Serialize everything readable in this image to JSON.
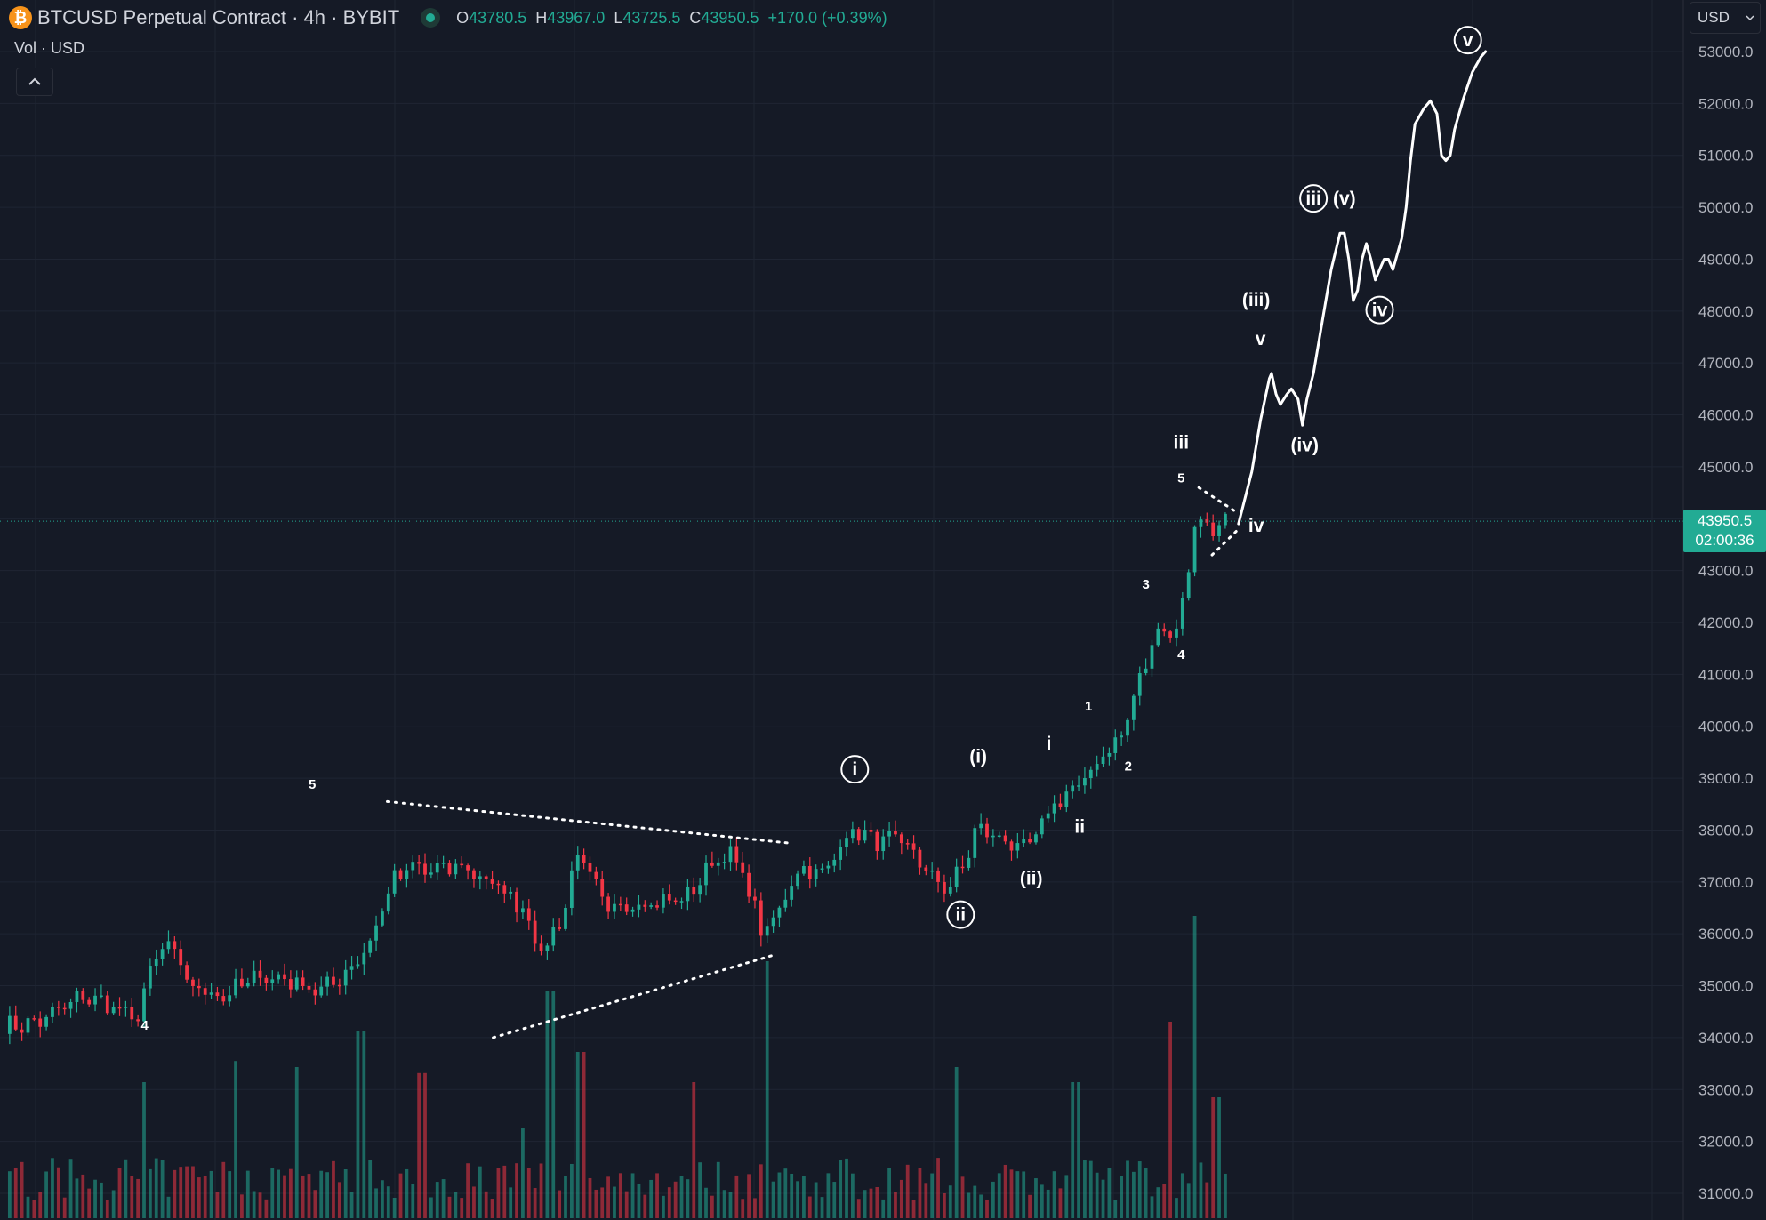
{
  "header": {
    "symbol_title": "BTCUSD Perpetual Contract · 4h · BYBIT",
    "logo_glyph": "₿",
    "ohlc": {
      "o_label": "O",
      "o_value": "43780.5",
      "h_label": "H",
      "h_value": "43967.0",
      "l_label": "L",
      "l_value": "43725.5",
      "c_label": "C",
      "c_value": "43950.5",
      "change": "+170.0 (+0.39%)"
    }
  },
  "volume_legend": "Vol · USD",
  "currency_select": {
    "value": "USD"
  },
  "last_price": {
    "price": "43950.5",
    "countdown": "02:00:36"
  },
  "colors": {
    "bull": "#22ab94",
    "bear": "#f23645",
    "background": "#151a26",
    "annotation": "#ffffff"
  },
  "chart_data": {
    "type": "candlestick",
    "timeframe": "4h",
    "price_axis": {
      "ylim": [
        30700,
        53600
      ],
      "tick_labels": [
        "31000.0",
        "32000.0",
        "33000.0",
        "34000.0",
        "35000.0",
        "36000.0",
        "37000.0",
        "38000.0",
        "39000.0",
        "40000.0",
        "41000.0",
        "42000.0",
        "43000.0",
        "44000.0",
        "45000.0",
        "46000.0",
        "47000.0",
        "48000.0",
        "49000.0",
        "50000.0",
        "51000.0",
        "52000.0",
        "53000.0"
      ],
      "scale": "linear",
      "grid": true
    },
    "bar_count": 200,
    "price_anchors": [
      [
        0,
        34200
      ],
      [
        8,
        34300
      ],
      [
        18,
        34800
      ],
      [
        25,
        34600
      ],
      [
        30,
        34300
      ],
      [
        34,
        35500
      ],
      [
        38,
        35800
      ],
      [
        42,
        35000
      ],
      [
        50,
        34800
      ],
      [
        58,
        35200
      ],
      [
        65,
        35100
      ],
      [
        72,
        34900
      ],
      [
        77,
        35200
      ],
      [
        83,
        35800
      ],
      [
        88,
        37000
      ],
      [
        93,
        37300
      ],
      [
        96,
        37200
      ],
      [
        104,
        37300
      ],
      [
        112,
        36900
      ],
      [
        118,
        36500
      ],
      [
        122,
        35600
      ],
      [
        127,
        36400
      ],
      [
        130,
        37600
      ],
      [
        133,
        37100
      ],
      [
        137,
        36400
      ],
      [
        141,
        36600
      ],
      [
        148,
        36600
      ],
      [
        155,
        36700
      ],
      [
        160,
        37300
      ],
      [
        164,
        37600
      ],
      [
        168,
        37100
      ],
      [
        172,
        36000
      ],
      [
        176,
        36400
      ],
      [
        178,
        37000
      ],
      [
        182,
        37300
      ],
      [
        186,
        37100
      ],
      [
        190,
        37800
      ],
      [
        193,
        38000
      ],
      [
        197,
        37800
      ],
      [
        202,
        37800
      ],
      [
        206,
        37600
      ],
      [
        211,
        37000
      ],
      [
        214,
        36900
      ],
      [
        218,
        37300
      ],
      [
        220,
        38000
      ],
      [
        225,
        37900
      ],
      [
        229,
        37700
      ],
      [
        232,
        37600
      ],
      [
        236,
        38200
      ],
      [
        239,
        38600
      ],
      [
        243,
        38800
      ],
      [
        246,
        39000
      ],
      [
        249,
        39500
      ],
      [
        253,
        39700
      ],
      [
        256,
        40500
      ],
      [
        259,
        41200
      ],
      [
        262,
        42000
      ],
      [
        264,
        41700
      ],
      [
        266,
        42000
      ],
      [
        268,
        42500
      ],
      [
        270,
        44000
      ],
      [
        274,
        43800
      ],
      [
        277,
        43950
      ]
    ],
    "volume": {
      "series": "Vol · USD",
      "spikes": [
        [
          32,
          0.45
        ],
        [
          53,
          0.52
        ],
        [
          67,
          0.5
        ],
        [
          81,
          0.62
        ],
        [
          95,
          0.48
        ],
        [
          118,
          0.3
        ],
        [
          124,
          0.75
        ],
        [
          131,
          0.55
        ],
        [
          156,
          0.45
        ],
        [
          173,
          0.85
        ],
        [
          216,
          0.5
        ],
        [
          243,
          0.45
        ],
        [
          265,
          0.65
        ],
        [
          270,
          1.0
        ],
        [
          275,
          0.4
        ]
      ]
    },
    "patterns": {
      "triangle": {
        "upper": [
          [
            87,
            38550
          ],
          [
            178,
            37750
          ]
        ],
        "lower": [
          [
            111,
            34000
          ],
          [
            175,
            35600
          ]
        ]
      },
      "small_triangle": {
        "upper": [
          [
            271,
            44600
          ],
          [
            280,
            44100
          ]
        ],
        "lower": [
          [
            274,
            43300
          ],
          [
            280,
            43800
          ]
        ]
      }
    },
    "projection_path": [
      [
        280,
        43900
      ],
      [
        283,
        44900
      ],
      [
        285,
        45900
      ],
      [
        287,
        46700
      ],
      [
        287.5,
        46800
      ],
      [
        288.5,
        46400
      ],
      [
        289.5,
        46200
      ],
      [
        291,
        46400
      ],
      [
        292,
        46500
      ],
      [
        293.5,
        46300
      ],
      [
        294.5,
        45800
      ],
      [
        295.5,
        46300
      ],
      [
        297,
        46800
      ],
      [
        299,
        47800
      ],
      [
        301,
        48800
      ],
      [
        303,
        49500
      ],
      [
        304,
        49500
      ],
      [
        305,
        49000
      ],
      [
        306,
        48200
      ],
      [
        307,
        48400
      ],
      [
        308,
        49000
      ],
      [
        309,
        49300
      ],
      [
        310,
        49000
      ],
      [
        311,
        48600
      ],
      [
        312,
        48800
      ],
      [
        313,
        49000
      ],
      [
        314,
        49000
      ],
      [
        315,
        48800
      ],
      [
        316,
        49100
      ],
      [
        317,
        49400
      ],
      [
        318,
        50000
      ],
      [
        319,
        50900
      ],
      [
        320,
        51600
      ],
      [
        322,
        51900
      ],
      [
        323.5,
        52050
      ],
      [
        325,
        51800
      ],
      [
        326,
        51000
      ],
      [
        327,
        50900
      ],
      [
        328,
        51000
      ],
      [
        329,
        51500
      ],
      [
        331,
        52100
      ],
      [
        333,
        52600
      ],
      [
        335,
        52900
      ],
      [
        336,
        53000
      ]
    ],
    "wave_labels": [
      {
        "text": "5",
        "x": 70,
        "y": 38800,
        "style": "small"
      },
      {
        "text": "4",
        "x": 32,
        "y": 34150,
        "style": "small"
      },
      {
        "text": "i",
        "x": 193,
        "y": 39050,
        "style": "circled"
      },
      {
        "text": "ii",
        "x": 217,
        "y": 36250,
        "style": "circled"
      },
      {
        "text": "(i)",
        "x": 221,
        "y": 39300,
        "style": "label"
      },
      {
        "text": "(ii)",
        "x": 233,
        "y": 36950,
        "style": "label"
      },
      {
        "text": "i",
        "x": 237,
        "y": 39550,
        "style": "label"
      },
      {
        "text": "ii",
        "x": 244,
        "y": 37950,
        "style": "label"
      },
      {
        "text": "1",
        "x": 246,
        "y": 40300,
        "style": "small"
      },
      {
        "text": "2",
        "x": 255,
        "y": 39150,
        "style": "small"
      },
      {
        "text": "3",
        "x": 259,
        "y": 42650,
        "style": "small"
      },
      {
        "text": "4",
        "x": 267,
        "y": 41300,
        "style": "small"
      },
      {
        "text": "5",
        "x": 267,
        "y": 44700,
        "style": "small"
      },
      {
        "text": "iii",
        "x": 267,
        "y": 45350,
        "style": "label"
      },
      {
        "text": "iv",
        "x": 284,
        "y": 43750,
        "style": "label"
      },
      {
        "text": "v",
        "x": 285,
        "y": 47350,
        "style": "label"
      },
      {
        "text": "(iii)",
        "x": 284,
        "y": 48100,
        "style": "label"
      },
      {
        "text": "(iv)",
        "x": 295,
        "y": 45300,
        "style": "label"
      },
      {
        "text": "iii",
        "x": 297,
        "y": 50050,
        "style": "circled"
      },
      {
        "text": "(v)",
        "x": 304,
        "y": 50050,
        "style": "label"
      },
      {
        "text": "iv",
        "x": 312,
        "y": 47900,
        "style": "circled"
      },
      {
        "text": "v",
        "x": 332,
        "y": 53100,
        "style": "circled"
      }
    ]
  }
}
